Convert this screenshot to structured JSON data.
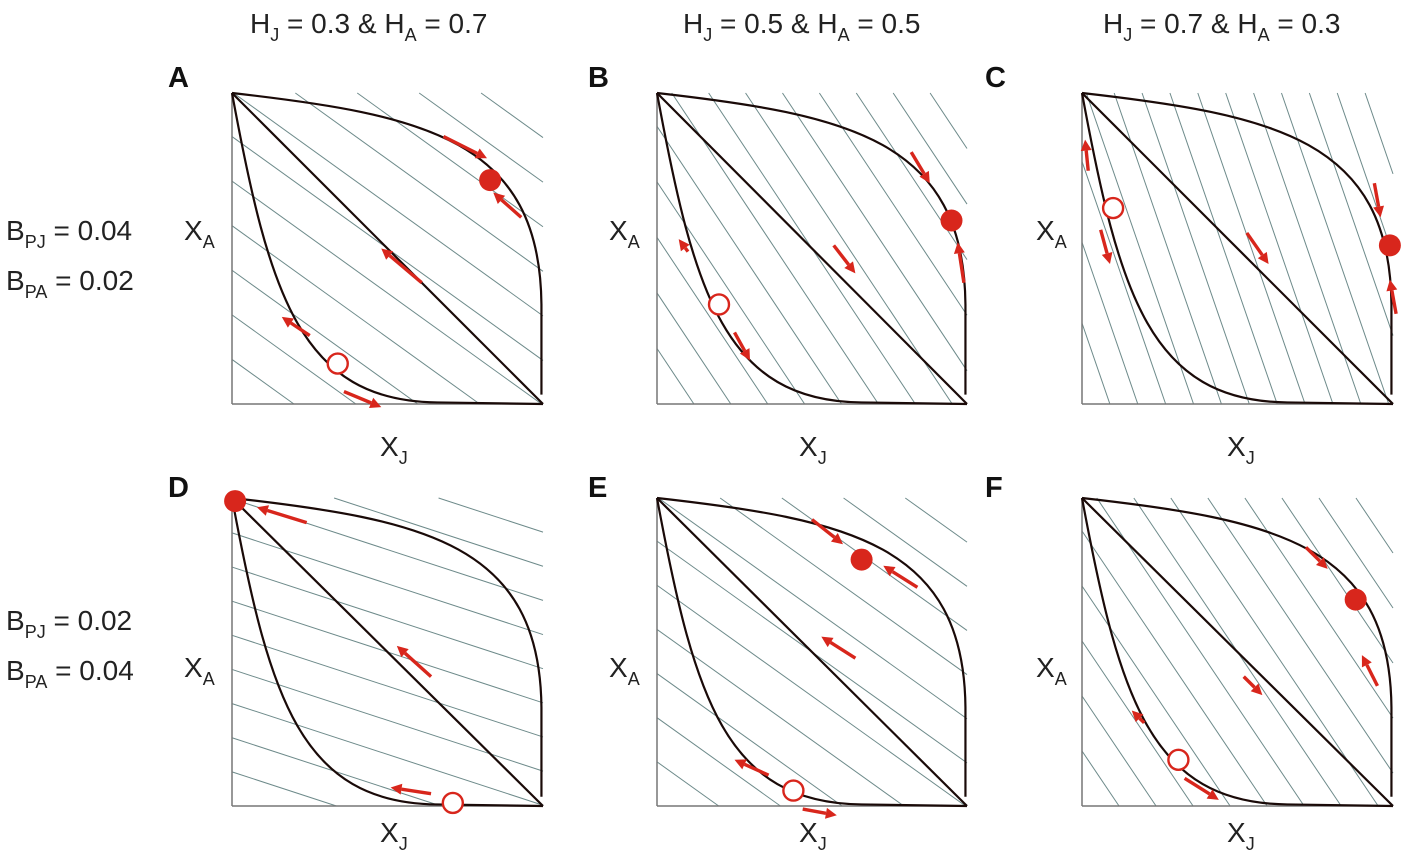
{
  "columns": [
    {
      "h_j": "0.3",
      "h_a": "0.7"
    },
    {
      "h_j": "0.5",
      "h_a": "0.5"
    },
    {
      "h_j": "0.7",
      "h_a": "0.3"
    }
  ],
  "rows": [
    {
      "b_pj": "0.04",
      "b_pa": "0.02"
    },
    {
      "b_pj": "0.02",
      "b_pa": "0.04"
    }
  ],
  "axis": {
    "x": "X",
    "x_sub": "J",
    "y": "X",
    "y_sub": "A"
  },
  "symbols": {
    "h": "H",
    "b": "B",
    "j_sub": "J",
    "a_sub": "A",
    "pj_sub": "PJ",
    "pa_sub": "PA",
    "amp": "&",
    "eq": "="
  },
  "colors": {
    "curve": "#1a0a08",
    "hatch": "#6d8a8a",
    "arrow": "#d8261c",
    "axis": "#777777"
  },
  "panels": [
    {
      "letter": "A",
      "hatch_slope": -0.72,
      "hatch_count": 11,
      "stable": [
        0.83,
        0.72
      ],
      "unstable": [
        0.34,
        0.13
      ],
      "arrows": [
        [
          0.68,
          0.86,
          0.82,
          0.79
        ],
        [
          0.93,
          0.6,
          0.84,
          0.68
        ],
        [
          0.61,
          0.39,
          0.48,
          0.5
        ],
        [
          0.25,
          0.22,
          0.16,
          0.28
        ],
        [
          0.36,
          0.04,
          0.48,
          -0.01
        ]
      ]
    },
    {
      "letter": "B",
      "hatch_slope": -1.5,
      "hatch_count": 13,
      "stable": [
        0.95,
        0.59
      ],
      "unstable": [
        0.2,
        0.32
      ],
      "arrows": [
        [
          0.82,
          0.81,
          0.88,
          0.71
        ],
        [
          0.99,
          0.39,
          0.97,
          0.52
        ],
        [
          0.57,
          0.51,
          0.64,
          0.42
        ],
        [
          0.1,
          0.49,
          0.07,
          0.53
        ],
        [
          0.25,
          0.23,
          0.3,
          0.14
        ]
      ]
    },
    {
      "letter": "C",
      "hatch_slope": -2.9,
      "hatch_count": 14,
      "stable": [
        0.99,
        0.51
      ],
      "unstable": [
        0.1,
        0.63
      ],
      "arrows": [
        [
          0.94,
          0.71,
          0.96,
          0.6
        ],
        [
          1.01,
          0.29,
          0.99,
          0.4
        ],
        [
          0.53,
          0.55,
          0.6,
          0.45
        ],
        [
          0.02,
          0.75,
          0.01,
          0.85
        ],
        [
          0.06,
          0.56,
          0.09,
          0.45
        ]
      ]
    },
    {
      "letter": "D",
      "hatch_slope": -0.33,
      "hatch_count": 11,
      "stable": [
        0.01,
        0.99
      ],
      "unstable": [
        0.71,
        0.01
      ],
      "arrows": [
        [
          0.24,
          0.92,
          0.08,
          0.97
        ],
        [
          0.64,
          0.04,
          0.51,
          0.06
        ],
        [
          0.64,
          0.42,
          0.53,
          0.52
        ]
      ]
    },
    {
      "letter": "E",
      "hatch_slope": -0.72,
      "hatch_count": 11,
      "stable": [
        0.66,
        0.8
      ],
      "unstable": [
        0.44,
        0.05
      ],
      "arrows": [
        [
          0.5,
          0.93,
          0.6,
          0.85
        ],
        [
          0.84,
          0.71,
          0.73,
          0.78
        ],
        [
          0.64,
          0.48,
          0.53,
          0.55
        ],
        [
          0.36,
          0.1,
          0.25,
          0.15
        ],
        [
          0.47,
          -0.01,
          0.58,
          -0.03
        ]
      ]
    },
    {
      "letter": "F",
      "hatch_slope": -1.5,
      "hatch_count": 13,
      "stable": [
        0.88,
        0.67
      ],
      "unstable": [
        0.31,
        0.15
      ],
      "arrows": [
        [
          0.72,
          0.84,
          0.79,
          0.77
        ],
        [
          0.95,
          0.39,
          0.9,
          0.49
        ],
        [
          0.52,
          0.42,
          0.58,
          0.36
        ],
        [
          0.2,
          0.27,
          0.16,
          0.31
        ],
        [
          0.33,
          0.09,
          0.44,
          0.02
        ]
      ]
    }
  ]
}
